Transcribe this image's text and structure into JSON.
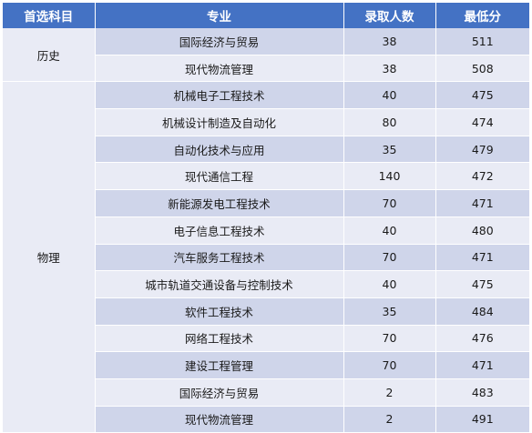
{
  "headers": [
    "首选科目",
    "专业",
    "录取人数",
    "最低分"
  ],
  "groups": [
    {
      "subject": "历史",
      "rows": [
        {
          "major": "国际经济与贸易",
          "count": "38",
          "min_score": "511"
        },
        {
          "major": "现代物流管理",
          "count": "38",
          "min_score": "508"
        }
      ]
    },
    {
      "subject": "物理",
      "rows": [
        {
          "major": "机械电子工程技术",
          "count": "40",
          "min_score": "475"
        },
        {
          "major": "机械设计制造及自动化",
          "count": "80",
          "min_score": "474"
        },
        {
          "major": "自动化技术与应用",
          "count": "35",
          "min_score": "479"
        },
        {
          "major": "现代通信工程",
          "count": "140",
          "min_score": "472"
        },
        {
          "major": "新能源发电工程技术",
          "count": "70",
          "min_score": "471"
        },
        {
          "major": "电子信息工程技术",
          "count": "40",
          "min_score": "480"
        },
        {
          "major": "汽车服务工程技术",
          "count": "70",
          "min_score": "471"
        },
        {
          "major": "城市轨道交通设备与控制技术",
          "count": "40",
          "min_score": "475"
        },
        {
          "major": "软件工程技术",
          "count": "35",
          "min_score": "484"
        },
        {
          "major": "网络工程技术",
          "count": "70",
          "min_score": "476"
        },
        {
          "major": "建设工程管理",
          "count": "70",
          "min_score": "471"
        },
        {
          "major": "国际经济与贸易",
          "count": "2",
          "min_score": "483"
        },
        {
          "major": "现代物流管理",
          "count": "2",
          "min_score": "491"
        }
      ]
    }
  ]
}
